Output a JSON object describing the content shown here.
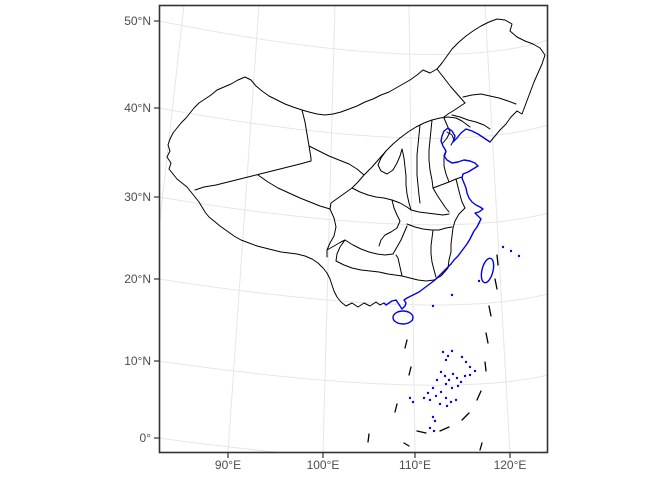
{
  "axes": {
    "y_ticks": [
      "50°N",
      "40°N",
      "30°N",
      "20°N",
      "10°N",
      "0°"
    ],
    "x_ticks": [
      "90°E",
      "100°E",
      "110°E",
      "120°E"
    ]
  },
  "colors": {
    "background": "#FFFFFF",
    "panel_background": "#FFFFFF",
    "panel_border": "#333333",
    "graticule": "#E6E6E6",
    "province_boundary": "#000000",
    "coastline_highlight": "#0000EE",
    "axis_text": "#4D4D4D",
    "axis_tick": "#333333"
  }
}
